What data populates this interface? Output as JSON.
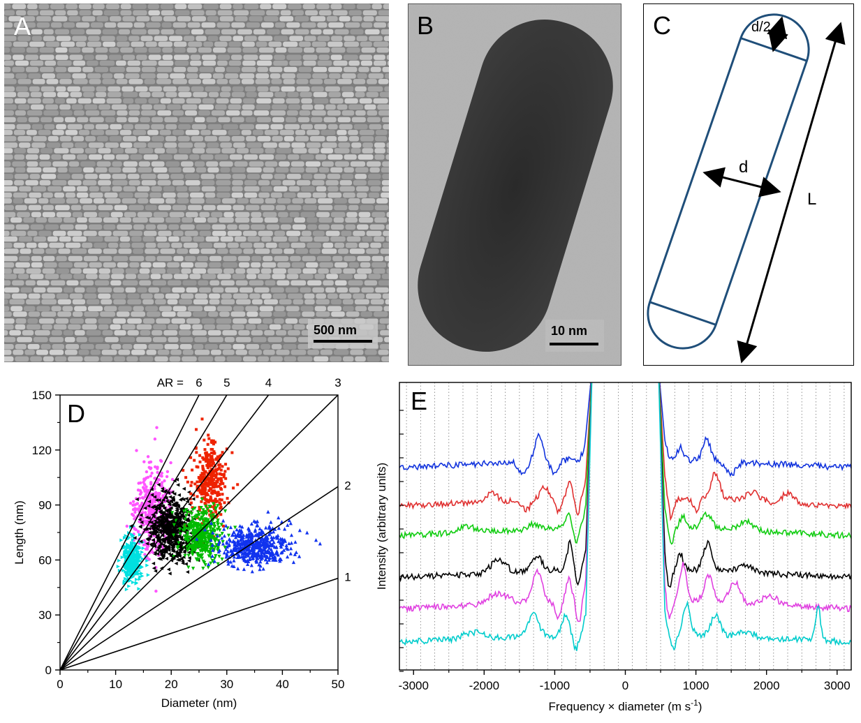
{
  "panels": {
    "a": {
      "label": "A",
      "scale_bar": "500 nm"
    },
    "b": {
      "label": "B",
      "scale_bar": "10 nm"
    },
    "c": {
      "label": "C",
      "labels": {
        "cap": "d/2",
        "diameter": "d",
        "length": "L"
      }
    },
    "d": {
      "label": "D"
    },
    "e": {
      "label": "E"
    }
  },
  "chart_data": [
    {
      "type": "scatter",
      "panel": "D",
      "xlabel": "Diameter (nm)",
      "ylabel": "Length (nm)",
      "xlim": [
        0,
        50
      ],
      "ylim": [
        0,
        150
      ],
      "xticks": [
        0,
        10,
        20,
        30,
        40,
        50
      ],
      "yticks": [
        0,
        30,
        60,
        90,
        120,
        150
      ],
      "ar_prefix": "AR =",
      "aspect_ratio_lines": [
        {
          "label": "6",
          "slope": 6
        },
        {
          "label": "5",
          "slope": 5
        },
        {
          "label": "4",
          "slope": 4
        },
        {
          "label": "3",
          "slope": 3
        },
        {
          "label": "2",
          "slope": 2
        },
        {
          "label": "1",
          "slope": 1
        }
      ],
      "clusters": [
        {
          "color": "#ff55ff",
          "marker": "circle",
          "center": [
            16.5,
            88
          ],
          "spread": [
            1.6,
            12
          ],
          "count": 380
        },
        {
          "color": "#00e0e0",
          "marker": "triangle-right",
          "center": [
            13,
            60
          ],
          "spread": [
            0.9,
            6
          ],
          "count": 330
        },
        {
          "color": "#000000",
          "marker": "triangle-left",
          "center": [
            20,
            77
          ],
          "spread": [
            2.2,
            9
          ],
          "count": 620
        },
        {
          "color": "#ee2200",
          "marker": "square",
          "center": [
            27,
            103
          ],
          "spread": [
            1.5,
            10
          ],
          "count": 330
        },
        {
          "color": "#00bb00",
          "marker": "triangle-down",
          "center": [
            25.5,
            73
          ],
          "spread": [
            1.8,
            7
          ],
          "count": 420
        },
        {
          "color": "#1133ee",
          "marker": "triangle-up",
          "center": [
            35,
            68
          ],
          "spread": [
            3.2,
            5.5
          ],
          "count": 480
        }
      ]
    },
    {
      "type": "line",
      "panel": "E",
      "xlabel": "Frequency × diameter (m s",
      "xlabel_sup": "-1",
      "xlabel_end": ")",
      "ylabel": "Intensity (arbitrary units)",
      "xlim": [
        -3200,
        3200
      ],
      "xticks": [
        -3000,
        -2000,
        -1000,
        0,
        1000,
        2000,
        3000
      ],
      "series": [
        {
          "color": "#1133dd",
          "baseline": 1.0,
          "peaks": [
            [
              -1450,
              -0.2,
              80
            ],
            [
              -1230,
              0.4,
              80
            ],
            [
              -1000,
              -0.25,
              70
            ],
            [
              780,
              0.2,
              60
            ],
            [
              1150,
              0.35,
              80
            ],
            [
              1500,
              -0.2,
              90
            ]
          ]
        },
        {
          "color": "#e03030",
          "baseline": 0.78,
          "peaks": [
            [
              -1900,
              0.15,
              120
            ],
            [
              -1400,
              -0.15,
              80
            ],
            [
              -1150,
              0.2,
              80
            ],
            [
              -950,
              -0.2,
              60
            ],
            [
              -780,
              0.25,
              60
            ],
            [
              -680,
              -0.3,
              50
            ],
            [
              1300,
              0.1,
              120
            ],
            [
              1800,
              0.15,
              130
            ],
            [
              2300,
              0.15,
              120
            ],
            [
              650,
              -0.35,
              50
            ],
            [
              1000,
              -0.2,
              60
            ],
            [
              1270,
              0.35,
              80
            ]
          ]
        },
        {
          "color": "#11cc11",
          "baseline": 0.61,
          "peaks": [
            [
              -2250,
              0.1,
              150
            ],
            [
              -1300,
              0.08,
              120
            ],
            [
              -800,
              0.2,
              60
            ],
            [
              -700,
              -0.25,
              50
            ],
            [
              650,
              -0.3,
              50
            ],
            [
              820,
              0.2,
              60
            ],
            [
              1150,
              0.25,
              100
            ],
            [
              1700,
              0.15,
              150
            ]
          ]
        },
        {
          "color": "#000000",
          "baseline": 0.37,
          "peaks": [
            [
              -1800,
              0.2,
              150
            ],
            [
              -1250,
              0.25,
              100
            ],
            [
              -780,
              0.45,
              60
            ],
            [
              -680,
              -0.3,
              50
            ],
            [
              620,
              -0.35,
              50
            ],
            [
              780,
              0.25,
              60
            ],
            [
              1170,
              0.45,
              90
            ],
            [
              1700,
              0.12,
              150
            ]
          ]
        },
        {
          "color": "#e040e0",
          "baseline": 0.19,
          "peaks": [
            [
              -1800,
              0.18,
              200
            ],
            [
              -1250,
              0.5,
              100
            ],
            [
              -950,
              -0.25,
              60
            ],
            [
              -800,
              0.35,
              60
            ],
            [
              -660,
              -0.4,
              50
            ],
            [
              620,
              -0.35,
              50
            ],
            [
              820,
              0.6,
              70
            ],
            [
              1180,
              0.45,
              90
            ],
            [
              1550,
              0.35,
              110
            ],
            [
              2050,
              0.15,
              150
            ]
          ]
        },
        {
          "color": "#00cccc",
          "baseline": 0.0,
          "peaks": [
            [
              -2150,
              0.1,
              200
            ],
            [
              -1300,
              0.35,
              100
            ],
            [
              -1050,
              -0.05,
              50
            ],
            [
              -850,
              0.3,
              70
            ],
            [
              -700,
              -0.25,
              50
            ],
            [
              680,
              -0.25,
              50
            ],
            [
              870,
              0.5,
              70
            ],
            [
              1280,
              0.35,
              90
            ],
            [
              1700,
              0.1,
              150
            ],
            [
              2730,
              0.55,
              50
            ]
          ]
        }
      ]
    }
  ]
}
